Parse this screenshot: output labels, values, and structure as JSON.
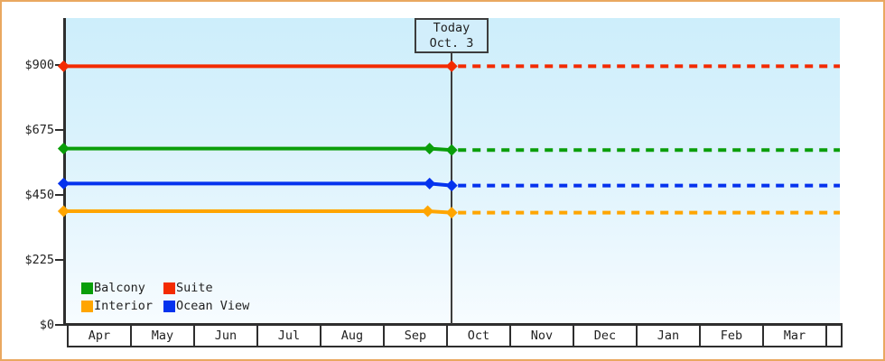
{
  "frame": {
    "border_color": "#e9a860",
    "background": "#ffffff",
    "axis_color": "#2e2e2e"
  },
  "chart_data": {
    "type": "line",
    "title": "",
    "x_axis": {
      "categories": [
        "Apr",
        "May",
        "Jun",
        "Jul",
        "Aug",
        "Sep",
        "Oct",
        "Nov",
        "Dec",
        "Jan",
        "Feb",
        "Mar"
      ]
    },
    "y_axis": {
      "ticks": [
        {
          "label": "$900",
          "value": 900
        },
        {
          "label": "$675",
          "value": 675
        },
        {
          "label": "$450",
          "value": 450
        },
        {
          "label": "$225",
          "value": 225
        },
        {
          "label": "$0",
          "value": 0
        }
      ],
      "ylim": [
        0,
        990
      ]
    },
    "today": {
      "label": "Today",
      "date": "Oct. 3",
      "month_offset": 6.06
    },
    "x_range_month_offset": [
      -0.08,
      12.2
    ],
    "grid": false,
    "line_style": {
      "solid_before_today": true,
      "dashed_after_today": true,
      "marker": "diamond"
    },
    "series": [
      {
        "name": "Balcony",
        "color": "#0a9e0a",
        "points": [
          {
            "x": -0.08,
            "value": 609
          },
          {
            "x": 5.71,
            "value": 609
          },
          {
            "x": 6.06,
            "value": 604
          }
        ],
        "forecast_value": 604
      },
      {
        "name": "Suite",
        "color": "#f32b00",
        "points": [
          {
            "x": -0.08,
            "value": 894
          },
          {
            "x": 6.06,
            "value": 894
          }
        ],
        "forecast_value": 894
      },
      {
        "name": "Interior",
        "color": "#ffa500",
        "points": [
          {
            "x": -0.08,
            "value": 392
          },
          {
            "x": 5.68,
            "value": 392
          },
          {
            "x": 6.06,
            "value": 387
          }
        ],
        "forecast_value": 387
      },
      {
        "name": "Ocean View",
        "color": "#0533ee",
        "points": [
          {
            "x": -0.08,
            "value": 488
          },
          {
            "x": 5.71,
            "value": 488
          },
          {
            "x": 6.06,
            "value": 481
          }
        ],
        "forecast_value": 481
      }
    ],
    "legend": {
      "position": "inside-bottom-left",
      "items": [
        "Balcony",
        "Suite",
        "Interior",
        "Ocean View"
      ]
    }
  }
}
